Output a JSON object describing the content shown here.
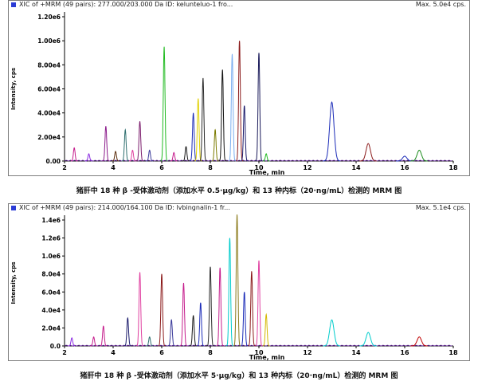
{
  "panels": [
    {
      "header_text": "XIC of +MRM (49 pairs): 277.000/203.000 Da ID: kelunteluo-1 fro...",
      "max_text": "Max. 5.0e4 cps.",
      "caption": "猪肝中 18 种 β -受体激动剂（添加水平 0.5·μg/kg）和 13 种内标（20·ng/mL）检测的 MRM 图"
    },
    {
      "header_text": "XIC of +MRM (49 pairs): 214.000/164.100 Da ID: lvbingnalin-1 fr...",
      "max_text": "Max. 5.1e4 cps.",
      "caption": "猪肝中 18 种 β -受体激动剂（添加水平 5·μg/kg）和 13 种内标（20·ng/mL）检测的 MRM 图"
    }
  ],
  "chart_data": [
    {
      "type": "line",
      "xlabel": "Time, min",
      "ylabel": "Intensity, cps",
      "xlim": [
        2,
        18
      ],
      "ylim": [
        0,
        1200000.0
      ],
      "x_ticks": [
        "2",
        "4",
        "6",
        "8",
        "10",
        "12",
        "14",
        "16",
        "18"
      ],
      "y_ticks": [
        "0.00",
        "2.00e4",
        "4.00e4",
        "6.00e4",
        "8.00e4",
        "1.00e6",
        "1.20e6"
      ],
      "grid": false,
      "peaks": [
        {
          "t": 2.4,
          "h": 110000,
          "color": "#c51c8c"
        },
        {
          "t": 3.0,
          "h": 60000,
          "color": "#8a2be2"
        },
        {
          "t": 3.7,
          "h": 290000,
          "color": "#8b1a8b"
        },
        {
          "t": 4.1,
          "h": 80000,
          "color": "#5a2d0c"
        },
        {
          "t": 4.5,
          "h": 260000,
          "color": "#2f6f6f"
        },
        {
          "t": 4.8,
          "h": 90000,
          "color": "#e040a0"
        },
        {
          "t": 5.1,
          "h": 330000,
          "color": "#7b1c6c"
        },
        {
          "t": 5.5,
          "h": 90000,
          "color": "#3a3a9a"
        },
        {
          "t": 6.1,
          "h": 950000,
          "color": "#22bb22"
        },
        {
          "t": 6.5,
          "h": 70000,
          "color": "#c51c8c"
        },
        {
          "t": 7.0,
          "h": 120000,
          "color": "#1a1a1a"
        },
        {
          "t": 7.3,
          "h": 400000,
          "color": "#1c2cb8"
        },
        {
          "t": 7.5,
          "h": 520000,
          "color": "#e0d000"
        },
        {
          "t": 7.7,
          "h": 690000,
          "color": "#2a2a2a"
        },
        {
          "t": 8.2,
          "h": 260000,
          "color": "#7b7b00"
        },
        {
          "t": 8.5,
          "h": 760000,
          "color": "#111111"
        },
        {
          "t": 8.9,
          "h": 890000,
          "color": "#7aaef0"
        },
        {
          "t": 9.2,
          "h": 1000000,
          "color": "#8b1a1a"
        },
        {
          "t": 9.4,
          "h": 460000,
          "color": "#1a1a6b"
        },
        {
          "t": 10.0,
          "h": 900000,
          "color": "#1a1a5a"
        },
        {
          "t": 10.3,
          "h": 60000,
          "color": "#22bb22"
        },
        {
          "t": 13.0,
          "h": 490000,
          "color": "#1c2cb8"
        },
        {
          "t": 14.5,
          "h": 145000,
          "color": "#8b1a1a"
        },
        {
          "t": 16.0,
          "h": 40000,
          "color": "#1c2cb8"
        },
        {
          "t": 16.6,
          "h": 90000,
          "color": "#1e8c1e"
        }
      ]
    },
    {
      "type": "line",
      "xlabel": "Time, min",
      "ylabel": "Intensity, cps",
      "xlim": [
        2,
        18
      ],
      "ylim": [
        0,
        1400000.0
      ],
      "x_ticks": [
        "2",
        "4",
        "6",
        "8",
        "10",
        "12",
        "14",
        "16",
        "18"
      ],
      "y_ticks": [
        "0.0",
        "2.0e4",
        "4.0e4",
        "6.0e4",
        "8.0e4",
        "1.0e6",
        "1.2e6",
        "1.4e6"
      ],
      "grid": false,
      "peaks": [
        {
          "t": 2.3,
          "h": 90000,
          "color": "#8a2be2"
        },
        {
          "t": 3.2,
          "h": 100000,
          "color": "#c51c8c"
        },
        {
          "t": 3.6,
          "h": 220000,
          "color": "#c51c8c"
        },
        {
          "t": 4.6,
          "h": 310000,
          "color": "#1a1a6b"
        },
        {
          "t": 5.1,
          "h": 820000,
          "color": "#e040a0"
        },
        {
          "t": 5.5,
          "h": 100000,
          "color": "#2f6f6f"
        },
        {
          "t": 6.0,
          "h": 800000,
          "color": "#8b1a1a"
        },
        {
          "t": 6.4,
          "h": 290000,
          "color": "#3a3a9a"
        },
        {
          "t": 6.9,
          "h": 700000,
          "color": "#c51c8c"
        },
        {
          "t": 7.3,
          "h": 340000,
          "color": "#1a1a1a"
        },
        {
          "t": 7.6,
          "h": 480000,
          "color": "#1c2cb8"
        },
        {
          "t": 8.0,
          "h": 880000,
          "color": "#2a2a2a"
        },
        {
          "t": 8.4,
          "h": 870000,
          "color": "#c51c8c"
        },
        {
          "t": 8.8,
          "h": 1200000,
          "color": "#00cccc"
        },
        {
          "t": 9.1,
          "h": 1460000,
          "color": "#8b7a1a"
        },
        {
          "t": 9.4,
          "h": 600000,
          "color": "#1c2cb8"
        },
        {
          "t": 9.7,
          "h": 830000,
          "color": "#8b1a1a"
        },
        {
          "t": 10.0,
          "h": 950000,
          "color": "#e040a0"
        },
        {
          "t": 10.3,
          "h": 350000,
          "color": "#d4b800"
        },
        {
          "t": 13.0,
          "h": 290000,
          "color": "#00cccc"
        },
        {
          "t": 14.5,
          "h": 150000,
          "color": "#00cccc"
        },
        {
          "t": 16.6,
          "h": 100000,
          "color": "#c00000"
        }
      ]
    }
  ]
}
